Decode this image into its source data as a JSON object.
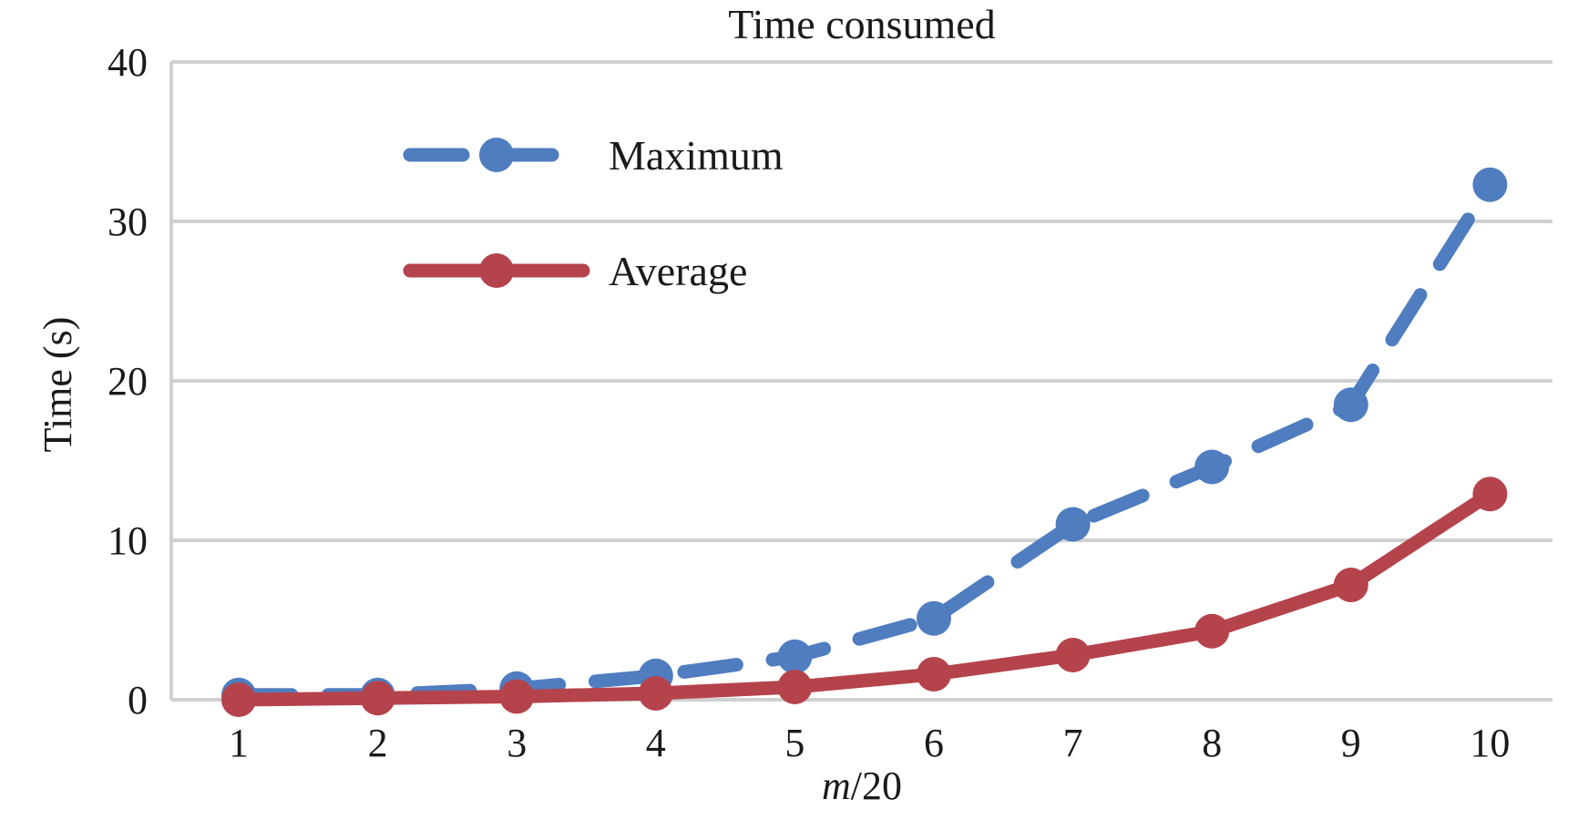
{
  "chart_data": {
    "type": "line",
    "title": "Time consumed",
    "xlabel": {
      "italic": "m",
      "rest": "/20"
    },
    "ylabel": "Time (s)",
    "categories": [
      "1",
      "2",
      "3",
      "4",
      "5",
      "6",
      "7",
      "8",
      "9",
      "10"
    ],
    "ylim": [
      0,
      40
    ],
    "yticks": [
      "0",
      "10",
      "20",
      "30",
      "40"
    ],
    "grid": true,
    "legend_position": "top-left",
    "series": [
      {
        "name": "Maximum",
        "values": [
          0.3,
          0.3,
          0.7,
          1.5,
          2.7,
          5.1,
          11.0,
          14.6,
          18.5,
          32.3
        ],
        "color": "#4f7dbf",
        "line_style": "dashed",
        "marker": "circle"
      },
      {
        "name": "Average",
        "values": [
          0.0,
          0.1,
          0.2,
          0.4,
          0.8,
          1.6,
          2.8,
          4.3,
          7.2,
          12.9
        ],
        "color": "#b5434c",
        "line_style": "solid",
        "marker": "circle"
      }
    ]
  }
}
